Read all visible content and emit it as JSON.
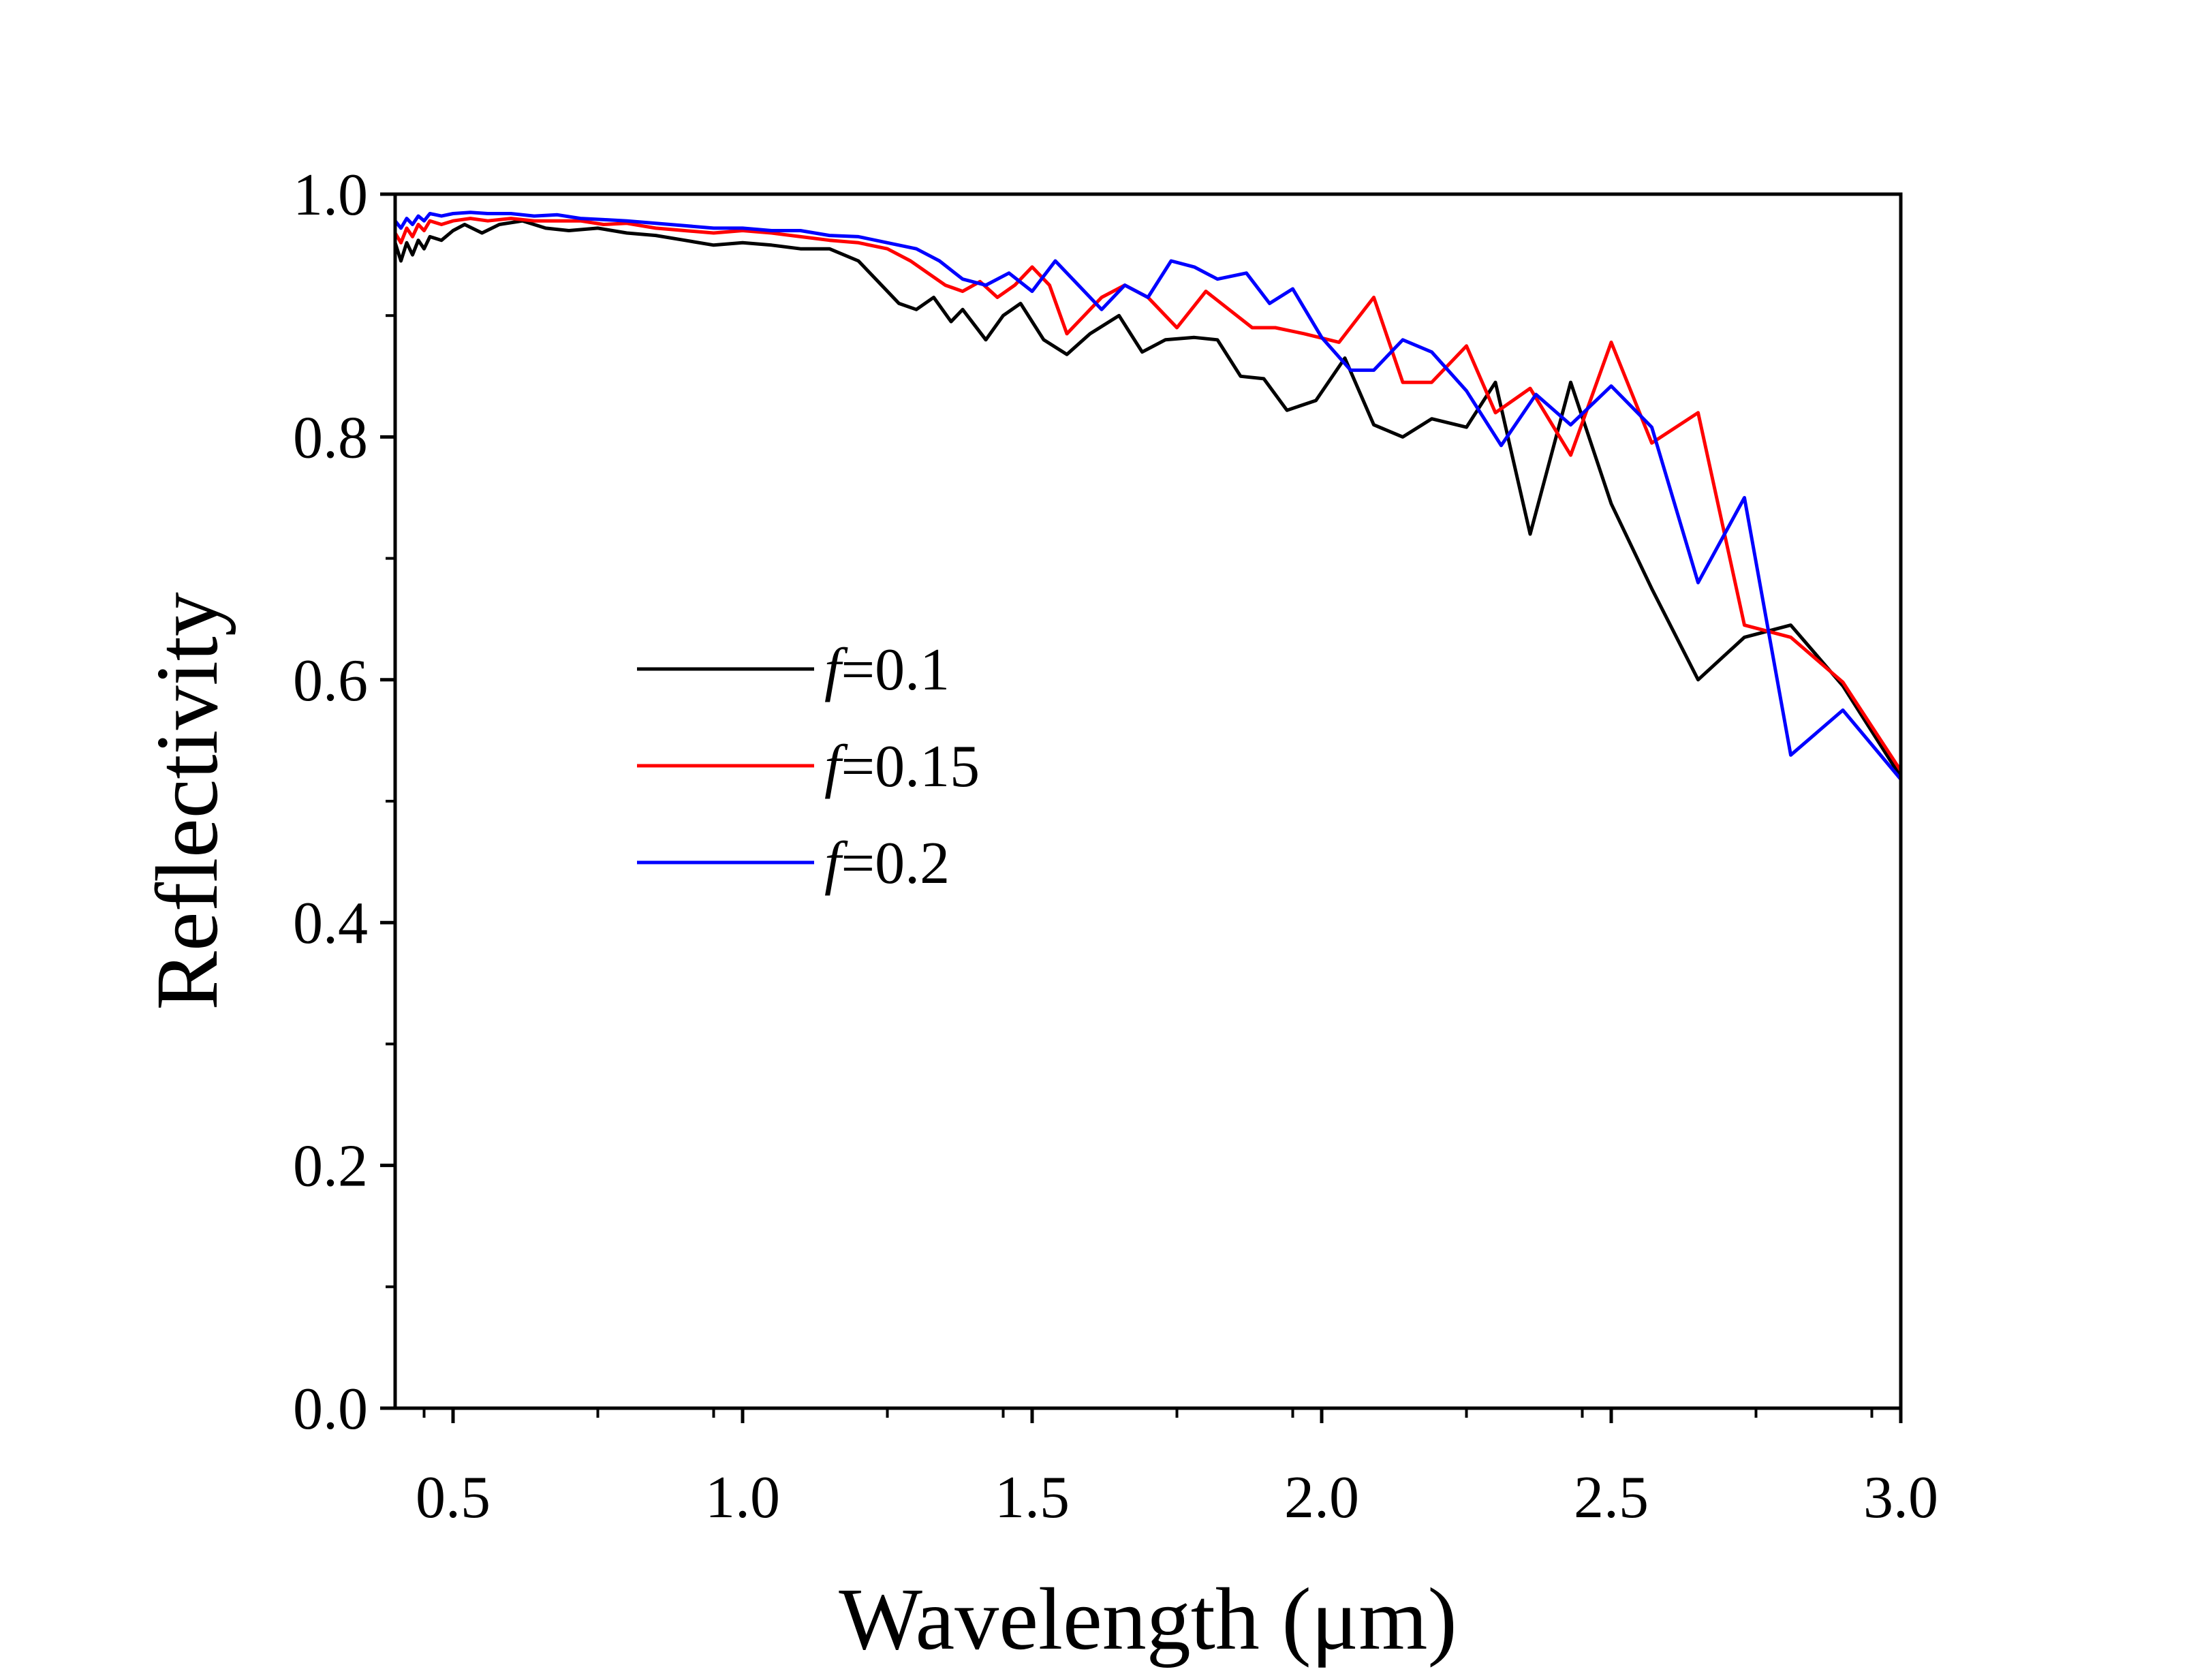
{
  "chart_data": {
    "type": "line",
    "title": "",
    "xlabel": "Wavelength (μm)",
    "ylabel": "Reflectivity",
    "xlim": [
      0.4,
      3.0
    ],
    "ylim": [
      0.0,
      1.0
    ],
    "xticks": [
      0.5,
      1.0,
      1.5,
      2.0,
      2.5,
      3.0
    ],
    "xtick_labels": [
      "0.5",
      "1.0",
      "1.5",
      "2.0",
      "2.5",
      "3.0"
    ],
    "yticks": [
      0.0,
      0.2,
      0.4,
      0.6,
      0.8,
      1.0
    ],
    "ytick_labels": [
      "0.0",
      "0.2",
      "0.4",
      "0.6",
      "0.8",
      "1.0"
    ],
    "grid": false,
    "legend_position": "center-left",
    "series": [
      {
        "name": "f=0.1",
        "legend_italic": "f",
        "legend_rest": "=0.1",
        "color": "#000000",
        "x": [
          0.4,
          0.41,
          0.42,
          0.43,
          0.44,
          0.45,
          0.46,
          0.48,
          0.5,
          0.52,
          0.55,
          0.58,
          0.62,
          0.66,
          0.7,
          0.75,
          0.8,
          0.85,
          0.9,
          0.95,
          1.0,
          1.05,
          1.1,
          1.15,
          1.2,
          1.24,
          1.27,
          1.3,
          1.33,
          1.36,
          1.38,
          1.42,
          1.45,
          1.48,
          1.52,
          1.56,
          1.6,
          1.65,
          1.69,
          1.73,
          1.78,
          1.82,
          1.86,
          1.9,
          1.94,
          1.99,
          2.04,
          2.09,
          2.14,
          2.19,
          2.25,
          2.3,
          2.36,
          2.43,
          2.5,
          2.57,
          2.65,
          2.73,
          2.81,
          2.9,
          3.0
        ],
        "values": [
          0.96,
          0.945,
          0.96,
          0.95,
          0.962,
          0.955,
          0.965,
          0.962,
          0.97,
          0.975,
          0.968,
          0.975,
          0.978,
          0.972,
          0.97,
          0.972,
          0.968,
          0.966,
          0.962,
          0.958,
          0.96,
          0.958,
          0.955,
          0.955,
          0.945,
          0.925,
          0.91,
          0.905,
          0.915,
          0.895,
          0.905,
          0.88,
          0.9,
          0.91,
          0.88,
          0.868,
          0.885,
          0.9,
          0.87,
          0.88,
          0.882,
          0.88,
          0.85,
          0.848,
          0.822,
          0.83,
          0.865,
          0.81,
          0.8,
          0.815,
          0.808,
          0.845,
          0.72,
          0.845,
          0.745,
          0.675,
          0.6,
          0.635,
          0.645,
          0.595,
          0.52
        ]
      },
      {
        "name": "f=0.15",
        "legend_italic": "f",
        "legend_rest": "=0.15",
        "color": "#ff0000",
        "x": [
          0.4,
          0.41,
          0.42,
          0.43,
          0.44,
          0.45,
          0.46,
          0.48,
          0.5,
          0.53,
          0.56,
          0.6,
          0.64,
          0.68,
          0.72,
          0.76,
          0.8,
          0.85,
          0.9,
          0.95,
          1.0,
          1.05,
          1.1,
          1.15,
          1.2,
          1.25,
          1.29,
          1.32,
          1.35,
          1.38,
          1.41,
          1.44,
          1.47,
          1.5,
          1.53,
          1.56,
          1.59,
          1.62,
          1.66,
          1.7,
          1.75,
          1.8,
          1.84,
          1.88,
          1.92,
          1.97,
          2.03,
          2.09,
          2.14,
          2.19,
          2.25,
          2.3,
          2.36,
          2.43,
          2.5,
          2.57,
          2.65,
          2.73,
          2.81,
          2.9,
          3.0
        ],
        "values": [
          0.968,
          0.96,
          0.972,
          0.965,
          0.975,
          0.97,
          0.978,
          0.975,
          0.978,
          0.98,
          0.978,
          0.98,
          0.978,
          0.978,
          0.978,
          0.975,
          0.976,
          0.972,
          0.97,
          0.968,
          0.97,
          0.968,
          0.965,
          0.962,
          0.96,
          0.955,
          0.945,
          0.935,
          0.925,
          0.92,
          0.928,
          0.915,
          0.925,
          0.94,
          0.925,
          0.885,
          0.9,
          0.915,
          0.925,
          0.915,
          0.89,
          0.92,
          0.905,
          0.89,
          0.89,
          0.885,
          0.878,
          0.915,
          0.845,
          0.845,
          0.875,
          0.82,
          0.84,
          0.785,
          0.878,
          0.795,
          0.82,
          0.645,
          0.635,
          0.598,
          0.525
        ]
      },
      {
        "name": "f=0.2",
        "legend_italic": "f",
        "legend_rest": "=0.2",
        "color": "#0000ff",
        "x": [
          0.4,
          0.41,
          0.42,
          0.43,
          0.44,
          0.45,
          0.46,
          0.48,
          0.5,
          0.53,
          0.56,
          0.6,
          0.64,
          0.68,
          0.72,
          0.76,
          0.8,
          0.85,
          0.9,
          0.95,
          1.0,
          1.05,
          1.1,
          1.15,
          1.2,
          1.25,
          1.3,
          1.34,
          1.38,
          1.42,
          1.46,
          1.5,
          1.54,
          1.58,
          1.62,
          1.66,
          1.7,
          1.74,
          1.78,
          1.82,
          1.87,
          1.91,
          1.95,
          2.0,
          2.05,
          2.09,
          2.14,
          2.19,
          2.25,
          2.31,
          2.37,
          2.43,
          2.5,
          2.57,
          2.65,
          2.73,
          2.81,
          2.9,
          3.0
        ],
        "values": [
          0.978,
          0.972,
          0.98,
          0.975,
          0.982,
          0.978,
          0.984,
          0.982,
          0.984,
          0.985,
          0.984,
          0.984,
          0.982,
          0.983,
          0.98,
          0.979,
          0.978,
          0.976,
          0.974,
          0.972,
          0.972,
          0.97,
          0.97,
          0.966,
          0.965,
          0.96,
          0.955,
          0.945,
          0.93,
          0.925,
          0.935,
          0.92,
          0.945,
          0.925,
          0.905,
          0.925,
          0.915,
          0.945,
          0.94,
          0.93,
          0.935,
          0.91,
          0.922,
          0.882,
          0.855,
          0.855,
          0.88,
          0.87,
          0.838,
          0.793,
          0.835,
          0.81,
          0.842,
          0.808,
          0.68,
          0.75,
          0.538,
          0.575,
          0.518
        ]
      }
    ]
  }
}
